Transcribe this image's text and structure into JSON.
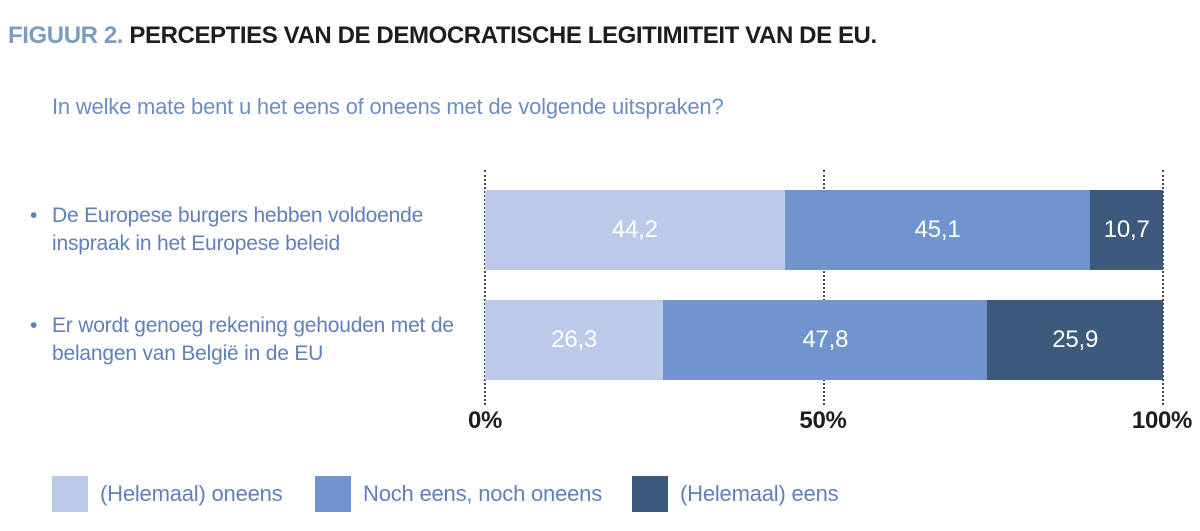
{
  "figure": {
    "label": "FIGUUR 2.",
    "title": "PERCEPTIES VAN DE DEMOCRATISCHE LEGITIMITEIT VAN DE EU.",
    "question": "In welke mate bent u het eens of oneens met de volgende uitspraken?"
  },
  "chart_data": {
    "type": "bar",
    "orientation": "horizontal",
    "stacked": true,
    "categories": [
      "De Europese burgers hebben voldoende inspraak in het Europese beleid",
      "Er wordt genoeg rekening gehouden met de belangen van België in de EU"
    ],
    "series": [
      {
        "name": "(Helemaal) oneens",
        "color": "#bdc9e9",
        "values": [
          44.2,
          26.3
        ]
      },
      {
        "name": "Noch eens, noch oneens",
        "color": "#6f94ce",
        "values": [
          45.1,
          47.8
        ]
      },
      {
        "name": "(Helemaal) eens",
        "color": "#3d5a7c",
        "values": [
          10.7,
          25.9
        ]
      }
    ],
    "value_labels": [
      [
        "44,2",
        "45,1",
        "10,7"
      ],
      [
        "26,3",
        "47,8",
        "25,9"
      ]
    ],
    "x_ticks": [
      "0%",
      "50%",
      "100%"
    ],
    "xlim": [
      0,
      100
    ],
    "grid": "dotted-vertical-at-ticks",
    "legend_position": "bottom"
  },
  "colors": {
    "figure_label": "#7d9cbe",
    "title_text": "#1d1d1b",
    "question_text": "#6d8ec2",
    "category_text": "#6080ba",
    "legend_text": "#6080ba",
    "bar_value_text": "#ffffff",
    "gridline": "#4a4a4a",
    "background": "#ffffff"
  }
}
